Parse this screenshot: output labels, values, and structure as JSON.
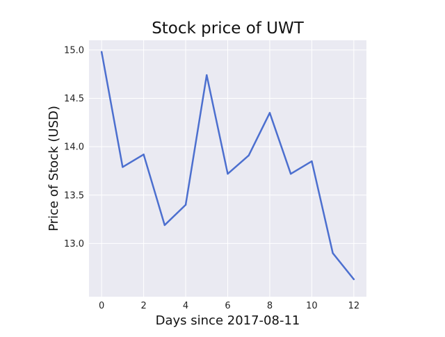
{
  "chart_data": {
    "type": "line",
    "title": "Stock price of UWT",
    "xlabel": "Days since 2017-08-11",
    "ylabel": "Price of Stock (USD)",
    "x": [
      0,
      1,
      2,
      3,
      4,
      5,
      6,
      7,
      8,
      9,
      10,
      11,
      12
    ],
    "series": [
      {
        "values": [
          14.98,
          13.79,
          13.92,
          13.19,
          13.4,
          14.74,
          13.72,
          13.91,
          14.35,
          13.72,
          13.85,
          12.9,
          12.63
        ],
        "color": "#4c6fcf"
      }
    ],
    "xlim": [
      -0.6,
      12.6
    ],
    "ylim": [
      12.45,
      15.1
    ],
    "xticks": [
      0,
      2,
      4,
      6,
      8,
      10,
      12
    ],
    "xtick_labels": [
      "0",
      "2",
      "4",
      "6",
      "8",
      "10",
      "12"
    ],
    "yticks": [
      13.0,
      13.5,
      14.0,
      14.5,
      15.0
    ],
    "ytick_labels": [
      "13.0",
      "13.5",
      "14.0",
      "14.5",
      "15.0"
    ],
    "grid": true,
    "legend": "none",
    "plot_background": "#eaeaf2",
    "grid_color": "#ffffff"
  }
}
